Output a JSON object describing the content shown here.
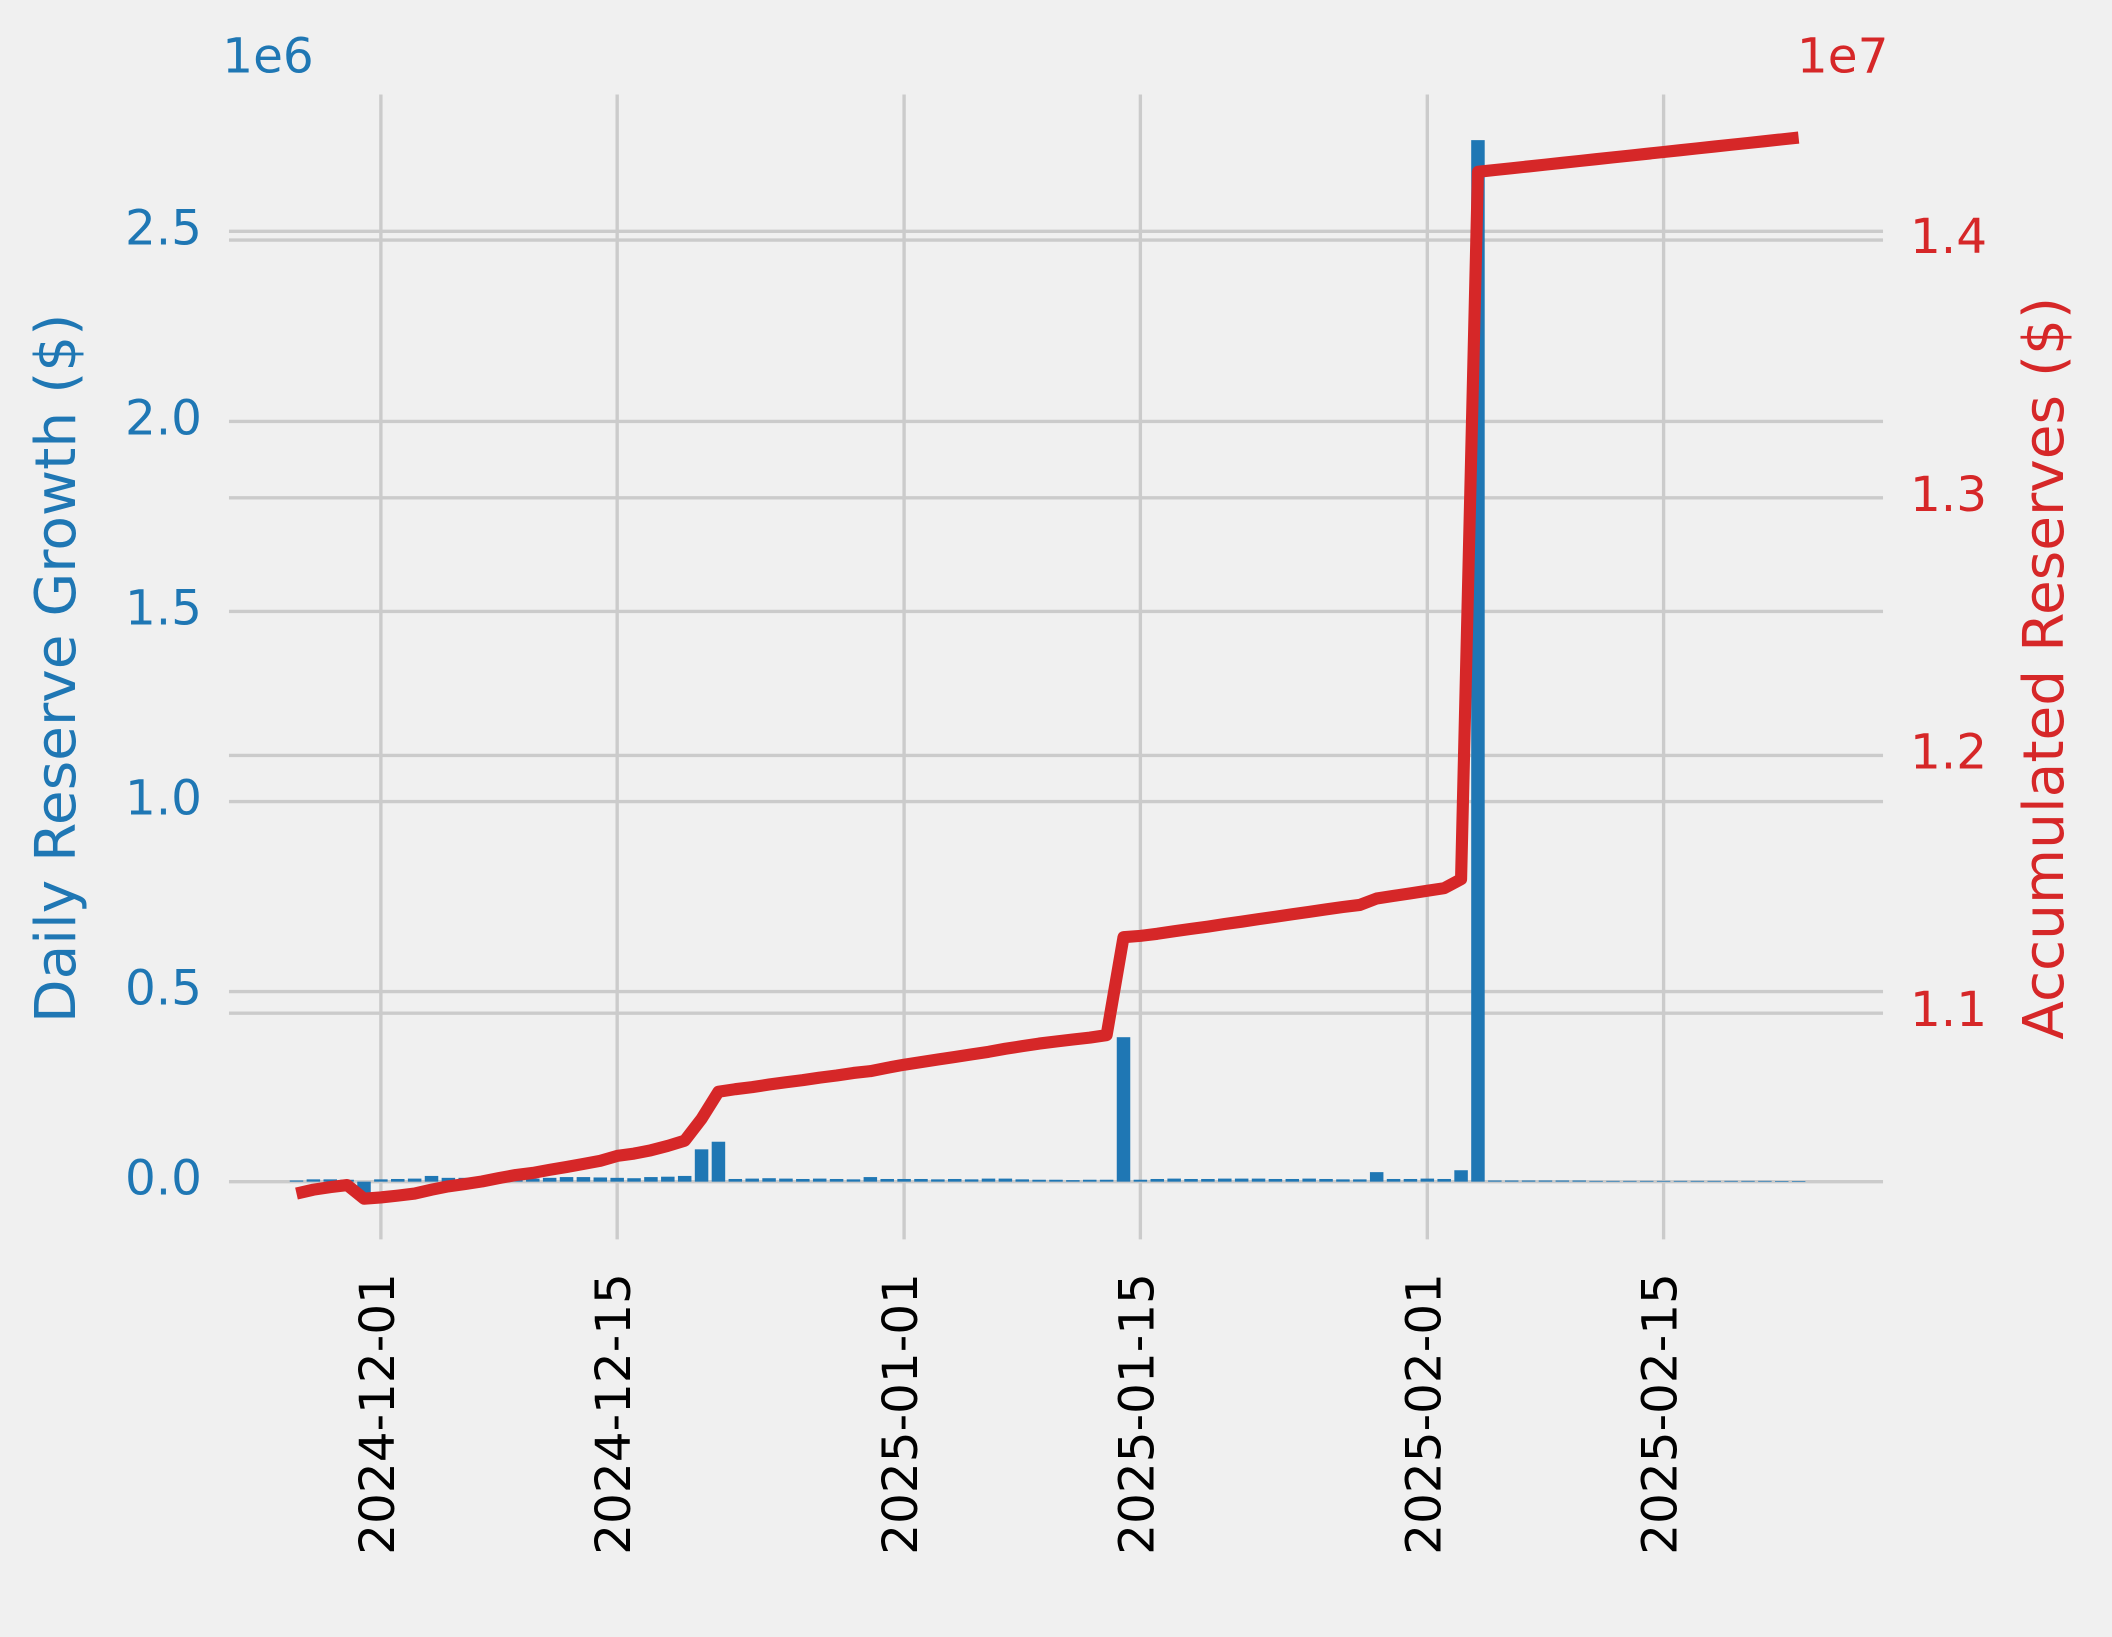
{
  "chart_data": {
    "type": "bar_line",
    "ylabel": "Daily Reserve Growth ($)",
    "y2label": "Accumulated Reserves ($)",
    "y_offset_label": "1e6",
    "y2_offset_label": "1e7",
    "grid": true,
    "x": [
      "2024-11-26",
      "2024-11-27",
      "2024-11-28",
      "2024-11-29",
      "2024-11-30",
      "2024-12-01",
      "2024-12-02",
      "2024-12-03",
      "2024-12-04",
      "2024-12-05",
      "2024-12-06",
      "2024-12-07",
      "2024-12-08",
      "2024-12-09",
      "2024-12-10",
      "2024-12-11",
      "2024-12-12",
      "2024-12-13",
      "2024-12-14",
      "2024-12-15",
      "2024-12-16",
      "2024-12-17",
      "2024-12-18",
      "2024-12-19",
      "2024-12-20",
      "2024-12-21",
      "2024-12-22",
      "2024-12-23",
      "2024-12-24",
      "2024-12-25",
      "2024-12-26",
      "2024-12-27",
      "2024-12-28",
      "2024-12-29",
      "2024-12-30",
      "2024-12-31",
      "2025-01-01",
      "2025-01-02",
      "2025-01-03",
      "2025-01-04",
      "2025-01-05",
      "2025-01-06",
      "2025-01-07",
      "2025-01-08",
      "2025-01-09",
      "2025-01-10",
      "2025-01-11",
      "2025-01-12",
      "2025-01-13",
      "2025-01-14",
      "2025-01-15",
      "2025-01-16",
      "2025-01-17",
      "2025-01-18",
      "2025-01-19",
      "2025-01-20",
      "2025-01-21",
      "2025-01-22",
      "2025-01-23",
      "2025-01-24",
      "2025-01-25",
      "2025-01-26",
      "2025-01-27",
      "2025-01-28",
      "2025-01-29",
      "2025-01-30",
      "2025-01-31",
      "2025-02-01",
      "2025-02-02",
      "2025-02-03",
      "2025-02-04",
      "2025-02-05",
      "2025-02-06",
      "2025-02-07",
      "2025-02-08",
      "2025-02-09",
      "2025-02-10",
      "2025-02-11",
      "2025-02-12",
      "2025-02-13",
      "2025-02-14",
      "2025-02-15",
      "2025-02-16",
      "2025-02-17",
      "2025-02-18",
      "2025-02-19",
      "2025-02-20",
      "2025-02-21",
      "2025-02-22",
      "2025-02-23"
    ],
    "series": [
      {
        "type": "bar",
        "color": "#1f77b4",
        "values": [
          0.003,
          0.006,
          0.006,
          0.005,
          -0.03,
          0.006,
          0.007,
          0.008,
          0.015,
          0.01,
          0.01,
          0.01,
          0.01,
          0.01,
          0.008,
          0.01,
          0.012,
          0.012,
          0.011,
          0.01,
          0.009,
          0.012,
          0.013,
          0.015,
          0.085,
          0.105,
          0.007,
          0.008,
          0.009,
          0.008,
          0.007,
          0.008,
          0.007,
          0.006,
          0.012,
          0.007,
          0.007,
          0.007,
          0.006,
          0.007,
          0.006,
          0.008,
          0.008,
          0.006,
          0.005,
          0.005,
          0.004,
          0.005,
          0.005,
          0.38,
          0.005,
          0.007,
          0.008,
          0.007,
          0.007,
          0.008,
          0.008,
          0.008,
          0.007,
          0.007,
          0.008,
          0.007,
          0.006,
          0.006,
          0.025,
          0.007,
          0.007,
          0.008,
          0.007,
          0.03,
          2.74,
          0.003,
          0.003,
          0.003,
          0.003,
          0.003,
          0.003,
          0.002,
          0.002,
          0.002,
          0.002,
          0.002,
          0.002,
          0.002,
          0.002,
          0.002,
          0.002,
          0.002,
          0.001,
          0.001
        ]
      },
      {
        "type": "line",
        "color": "#d62728",
        "axis": "y2",
        "values": [
          1.03,
          1.0315,
          1.0325,
          1.0333,
          1.028,
          1.0285,
          1.0292,
          1.03,
          1.0315,
          1.0328,
          1.0337,
          1.0347,
          1.036,
          1.0372,
          1.038,
          1.0392,
          1.0403,
          1.0415,
          1.0427,
          1.0446,
          1.0455,
          1.0468,
          1.0485,
          1.0505,
          1.059,
          1.0695,
          1.0705,
          1.0713,
          1.0723,
          1.0732,
          1.074,
          1.075,
          1.0758,
          1.0768,
          1.0775,
          1.0788,
          1.08,
          1.081,
          1.082,
          1.083,
          1.084,
          1.085,
          1.0862,
          1.0872,
          1.0882,
          1.089,
          1.0898,
          1.0905,
          1.0915,
          1.1295,
          1.13,
          1.1308,
          1.1318,
          1.1327,
          1.1336,
          1.1346,
          1.1355,
          1.1365,
          1.1374,
          1.1384,
          1.1393,
          1.1403,
          1.1412,
          1.142,
          1.1445,
          1.1455,
          1.1465,
          1.1475,
          1.1485,
          1.152,
          1.4265,
          1.4272,
          1.4279,
          1.4286,
          1.4293,
          1.43,
          1.4307,
          1.4314,
          1.4321,
          1.4328,
          1.4335,
          1.4342,
          1.4349,
          1.4356,
          1.4363,
          1.437,
          1.4377,
          1.4384,
          1.4391,
          1.4398
        ]
      }
    ],
    "xlim": [
      "2024-11-22",
      "2025-02-28"
    ],
    "xticks": [
      "2024-12-01",
      "2024-12-15",
      "2025-01-01",
      "2025-01-15",
      "2025-02-01",
      "2025-02-15"
    ],
    "ylim": [
      -0.152,
      2.86
    ],
    "yticks": [
      {
        "value": 0,
        "label": "0.0"
      },
      {
        "value": 0.5,
        "label": "0.5"
      },
      {
        "value": 1,
        "label": "1.0"
      },
      {
        "value": 1.5,
        "label": "1.5"
      },
      {
        "value": 2,
        "label": "2.0"
      },
      {
        "value": 2.5,
        "label": "2.5"
      }
    ],
    "y2lim": [
      1.0122,
      1.4565
    ],
    "y2ticks": [
      1.1,
      1.2,
      1.3,
      1.4
    ]
  }
}
